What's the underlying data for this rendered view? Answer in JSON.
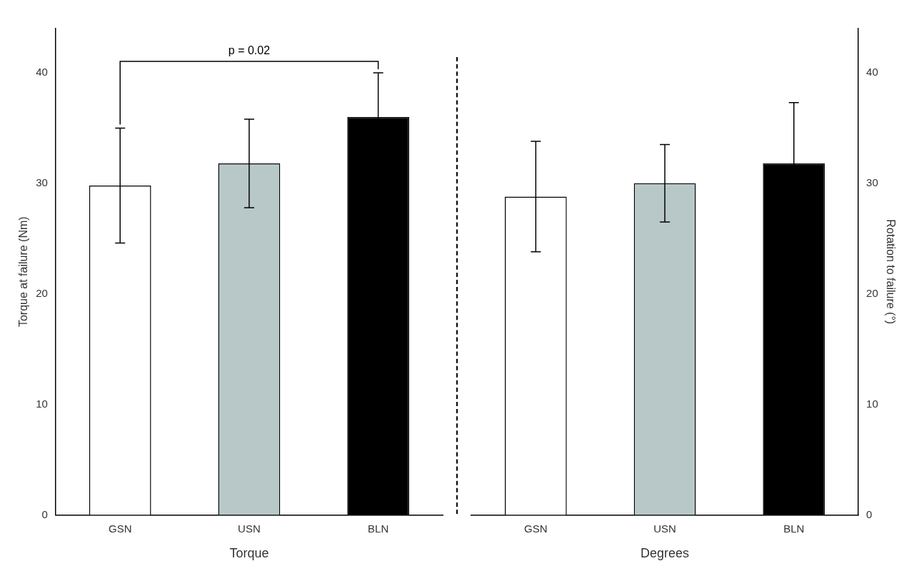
{
  "chart_data": [
    {
      "type": "bar",
      "categories": [
        "GSN",
        "USN",
        "BLN"
      ],
      "values": [
        29.8,
        31.8,
        36.0
      ],
      "errors": [
        5.2,
        4.0,
        4.0
      ],
      "colors": [
        "#ffffff",
        "#b8c8c8",
        "#000000"
      ],
      "ylim": [
        0,
        44
      ],
      "yticks": [
        0,
        10,
        20,
        30,
        40
      ],
      "ylabel": "Torque at failure (Nm)",
      "xlabel": "Torque",
      "annotation": "p = 0.02",
      "grid": false
    },
    {
      "type": "bar",
      "categories": [
        "GSN",
        "USN",
        "BLN"
      ],
      "values": [
        28.8,
        30.0,
        31.8
      ],
      "errors": [
        5.0,
        3.5,
        5.5
      ],
      "colors": [
        "#ffffff",
        "#b8c8c8",
        "#000000"
      ],
      "ylim": [
        0,
        44
      ],
      "yticks": [
        0,
        10,
        20,
        30,
        40
      ],
      "ylabel": "Rotation to failure (°)",
      "xlabel": "Degrees",
      "grid": false
    }
  ]
}
